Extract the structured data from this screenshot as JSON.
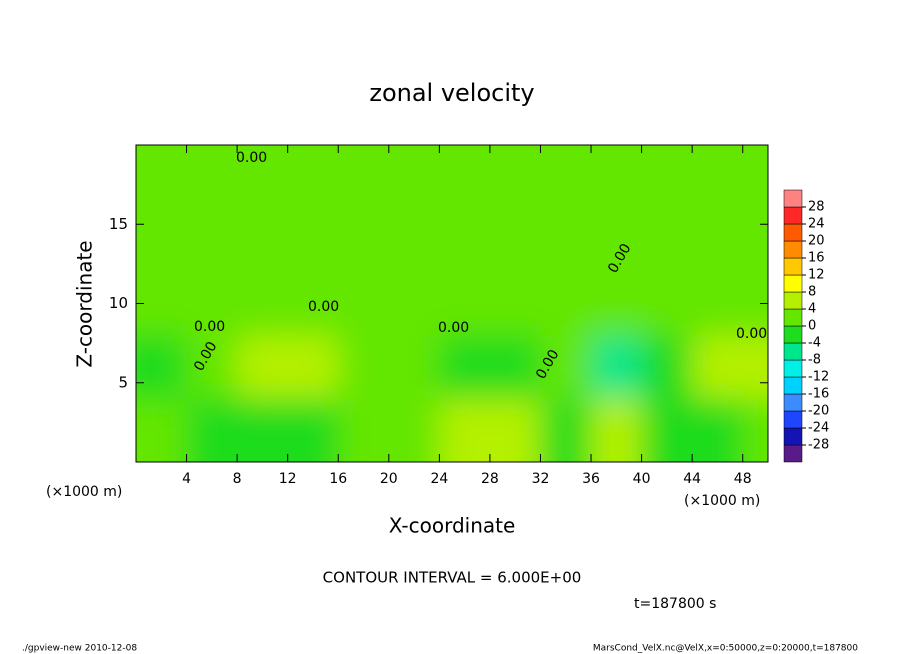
{
  "chart_data": {
    "type": "heatmap",
    "title": "zonal velocity",
    "x_label": "X-coordinate",
    "y_label": "Z-coordinate",
    "x_unit_labels": [
      "(×1000 m)",
      "(×1000 m)"
    ],
    "xlim": [
      0,
      50
    ],
    "ylim": [
      0,
      20
    ],
    "xticks": [
      4,
      8,
      12,
      16,
      20,
      24,
      28,
      32,
      36,
      40,
      44,
      48
    ],
    "yticks": [
      5,
      10,
      15
    ],
    "field": {
      "x": [
        2,
        6,
        10,
        14,
        18,
        22,
        26,
        30,
        34,
        38,
        42,
        46,
        50
      ],
      "y": [
        2,
        6,
        10,
        14,
        18
      ],
      "values": [
        [
          2,
          -4,
          -4,
          -2,
          3,
          2,
          6,
          5,
          -2,
          6,
          -3,
          -4,
          2
        ],
        [
          -3,
          0,
          6,
          5,
          3,
          2,
          -4,
          -2,
          1,
          -6,
          -4,
          6,
          4
        ],
        [
          2,
          2,
          2,
          3,
          2,
          2,
          2,
          2,
          2,
          2,
          2,
          2,
          2
        ],
        [
          1,
          1,
          1,
          1,
          1,
          1,
          1,
          1,
          1,
          1,
          1,
          1,
          1
        ],
        [
          1,
          1,
          1,
          1,
          1,
          1,
          1,
          1,
          1,
          1,
          1,
          1,
          1
        ]
      ]
    },
    "levels": [
      -28,
      -24,
      -20,
      -16,
      -12,
      -8,
      -4,
      0,
      4,
      8,
      12,
      16,
      20,
      24,
      28
    ],
    "colors": [
      "#5a1a8a",
      "#1414b4",
      "#1e46ff",
      "#3c8cff",
      "#00d2ff",
      "#00f0e6",
      "#00e68c",
      "#1edc1e",
      "#64e600",
      "#b4f000",
      "#ffff00",
      "#ffc800",
      "#ff8c00",
      "#ff5a00",
      "#ff2828",
      "#ff8282"
    ],
    "contour_labels": [
      "0.00",
      "0.00",
      "0.00",
      "0.00",
      "0.00",
      "0.00",
      "0.00",
      "0.00"
    ],
    "contour_interval": "CONTOUR INTERVAL = 6.000E+00",
    "time_label": "t=187800 s",
    "footer_left": "./gpview-new  2010-12-08",
    "footer_right": "MarsCond_VelX.nc@VelX,x=0:50000,z=0:20000,t=187800"
  }
}
